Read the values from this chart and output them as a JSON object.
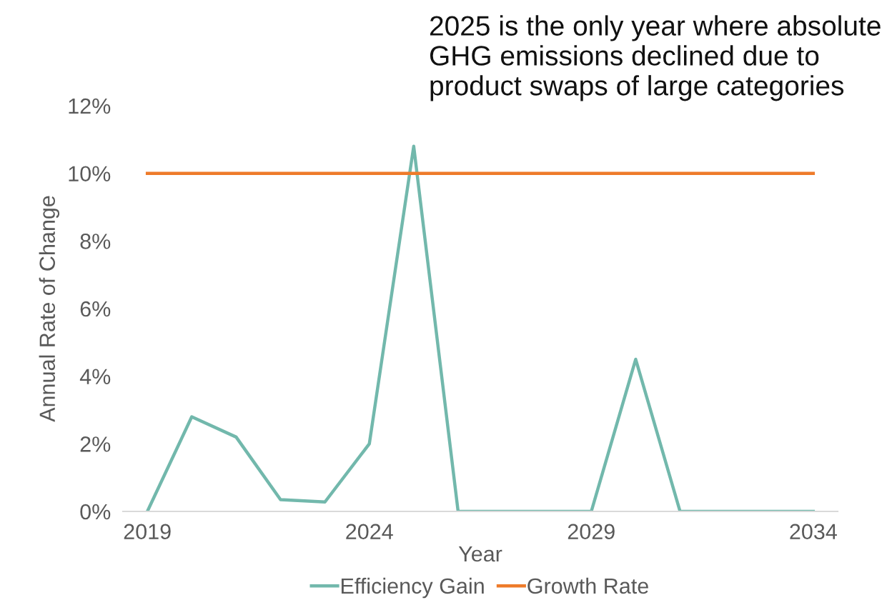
{
  "chart_data": {
    "type": "line",
    "xlabel": "Year",
    "ylabel": "Annual Rate of Change",
    "x": [
      2019,
      2020,
      2021,
      2022,
      2023,
      2024,
      2025,
      2026,
      2027,
      2028,
      2029,
      2030,
      2031,
      2032,
      2033,
      2034
    ],
    "series": [
      {
        "name": "Efficiency Gain",
        "color": "#72b8ac",
        "values": [
          0,
          2.8,
          2.2,
          0.35,
          0.28,
          2.0,
          10.8,
          0,
          0,
          0,
          0,
          4.5,
          0,
          0,
          0,
          0
        ]
      },
      {
        "name": "Growth Rate",
        "color": "#ee7b2a",
        "values": [
          10,
          10,
          10,
          10,
          10,
          10,
          10,
          10,
          10,
          10,
          10,
          10,
          10,
          10,
          10,
          10
        ]
      }
    ],
    "xlim": [
      2018.45,
      2034.55
    ],
    "xticks": [
      2019,
      2024,
      2029,
      2034
    ],
    "ylim": [
      0,
      12
    ],
    "yticks": [
      {
        "value": 0,
        "label": "0%"
      },
      {
        "value": 2,
        "label": "2%"
      },
      {
        "value": 4,
        "label": "4%"
      },
      {
        "value": 6,
        "label": "6%"
      },
      {
        "value": 8,
        "label": "8%"
      },
      {
        "value": 10,
        "label": "10%"
      },
      {
        "value": 12,
        "label": "12%"
      }
    ],
    "grid": false,
    "legend": "bottom",
    "marker": "none",
    "line_style": "solid",
    "annotations": [
      "2025 is the only year where absolute GHG emissions declined due to product swaps of large categories"
    ]
  }
}
